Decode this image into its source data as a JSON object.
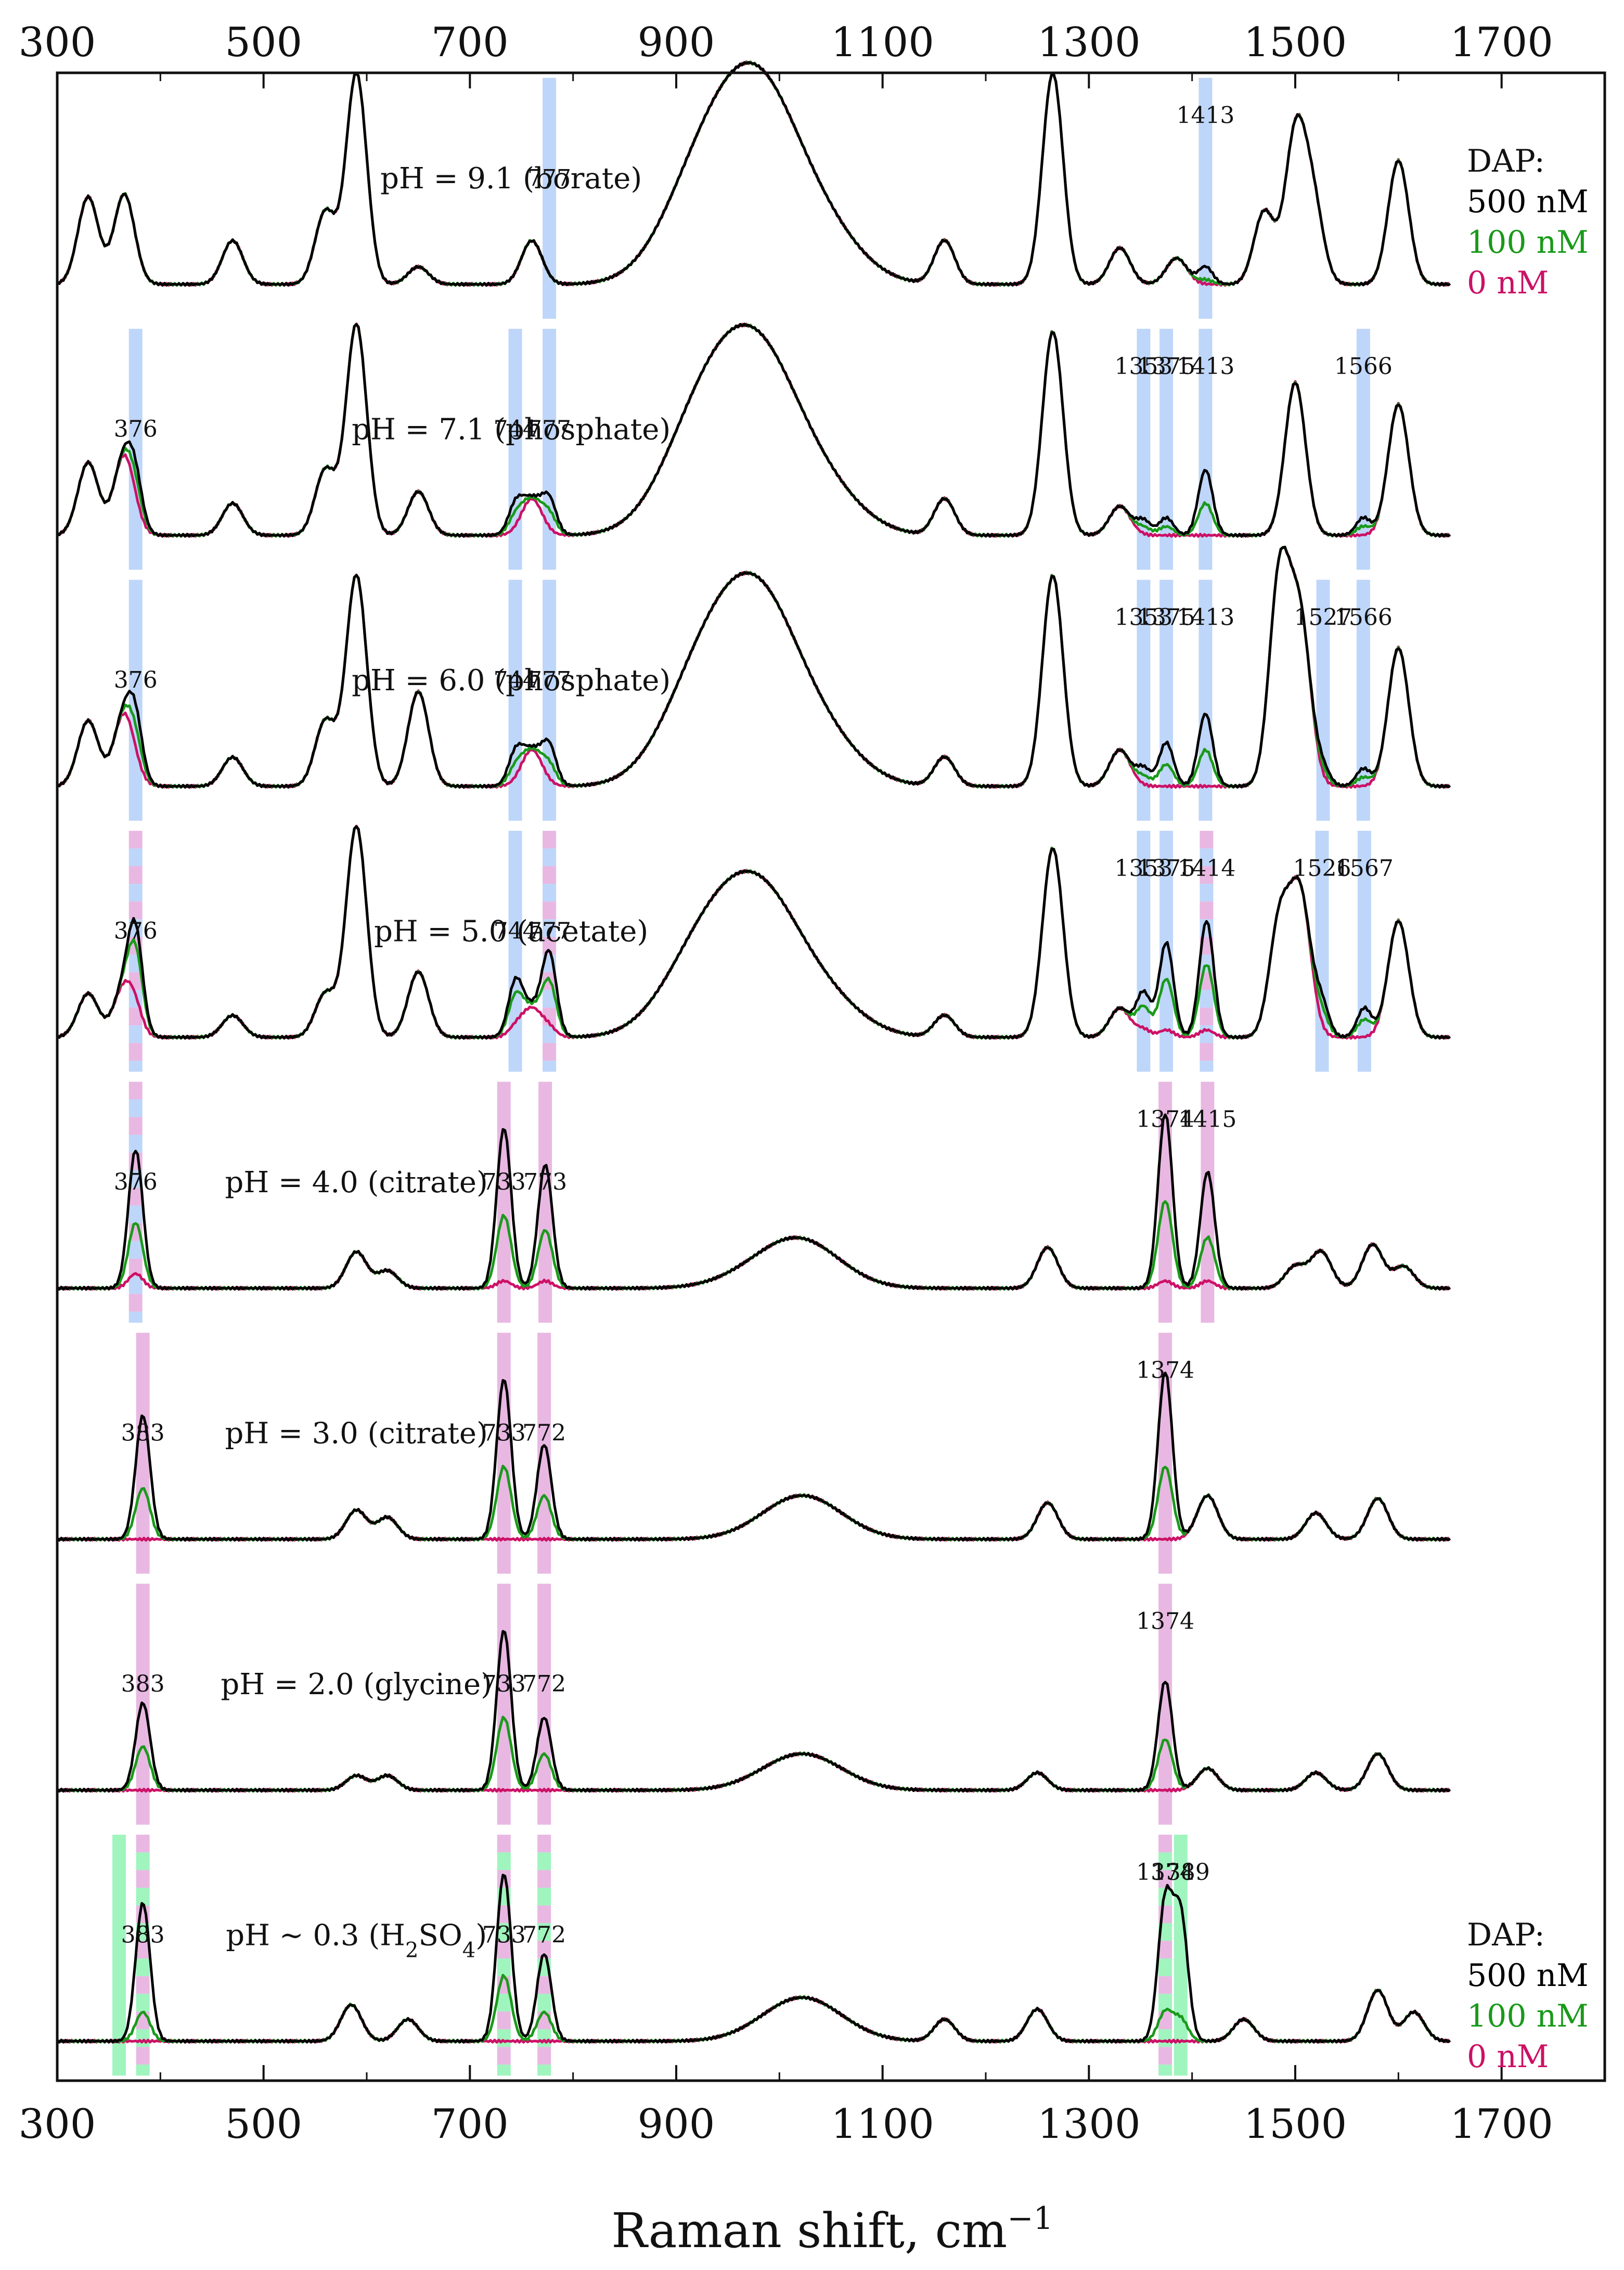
{
  "chart_data": {
    "type": "line",
    "xlabel": "Raman shift, cm",
    "xlabel_sup": "−1",
    "xlim": [
      300,
      1800
    ],
    "xticks": [
      300,
      500,
      700,
      900,
      1100,
      1300,
      1500,
      1700
    ],
    "xtick_labels": [
      "300",
      "500",
      "700",
      "900",
      "1100",
      "1300",
      "1500",
      "1700"
    ],
    "legend": {
      "title": "DAP:",
      "entries": [
        {
          "label": "500 nM",
          "color": "#000000"
        },
        {
          "label": "100 nM",
          "color": "#1a9a1a"
        },
        {
          "label": "0 nM",
          "color": "#cc1166"
        }
      ],
      "placement": "top-right and bottom-right"
    },
    "colors": {
      "black": "#000000",
      "green": "#1a9a1a",
      "magenta": "#cc1166",
      "blue_band": "#a8c8f8",
      "pink_band": "#e0a0d8",
      "mint_band": "#80f0a8"
    },
    "panels": [
      {
        "label": "pH = 9.1 (borate)",
        "base": [
          [
            330,
            0.6
          ],
          [
            365,
            0.62
          ],
          [
            470,
            0.3
          ],
          [
            560,
            0.5
          ],
          [
            590,
            1.45
          ],
          [
            650,
            0.12
          ],
          [
            760,
            0.3
          ],
          [
            925,
            0.7
          ],
          [
            980,
            1.15
          ],
          [
            1040,
            0.35
          ],
          [
            1160,
            0.3
          ],
          [
            1265,
            1.45
          ],
          [
            1330,
            0.25
          ],
          [
            1385,
            0.18
          ],
          [
            1470,
            0.5
          ],
          [
            1500,
            1.0
          ],
          [
            1517,
            0.55
          ],
          [
            1600,
            0.85
          ]
        ],
        "peaks": [
          {
            "x": 1413,
            "label": "1413",
            "amp": [
              0.12,
              0.03,
              0.0
            ]
          },
          {
            "x": 777,
            "label": "777",
            "amp": [
              0.0,
              0.0,
              0.0
            ]
          }
        ],
        "bands": [
          {
            "x": 777,
            "kind": "blue"
          },
          {
            "x": 1413,
            "kind": "blue"
          }
        ]
      },
      {
        "label": "pH = 7.1 (phosphate)",
        "base": [
          [
            330,
            0.5
          ],
          [
            365,
            0.55
          ],
          [
            470,
            0.22
          ],
          [
            560,
            0.45
          ],
          [
            590,
            1.45
          ],
          [
            650,
            0.3
          ],
          [
            760,
            0.25
          ],
          [
            925,
            0.75
          ],
          [
            980,
            1.05
          ],
          [
            1040,
            0.3
          ],
          [
            1160,
            0.25
          ],
          [
            1265,
            1.4
          ],
          [
            1330,
            0.2
          ],
          [
            1500,
            1.05
          ],
          [
            1600,
            0.9
          ]
        ],
        "peaks": [
          {
            "x": 376,
            "label": "376",
            "amp": [
              0.22,
              0.12,
              0.0
            ]
          },
          {
            "x": 744,
            "label": "744",
            "amp": [
              0.18,
              0.1,
              0.0
            ]
          },
          {
            "x": 777,
            "label": "777",
            "amp": [
              0.22,
              0.12,
              0.0
            ]
          },
          {
            "x": 1353,
            "label": "1353",
            "amp": [
              0.1,
              0.05,
              0.0
            ]
          },
          {
            "x": 1375,
            "label": "1375",
            "amp": [
              0.12,
              0.06,
              0.0
            ]
          },
          {
            "x": 1413,
            "label": "1413",
            "amp": [
              0.45,
              0.22,
              0.0
            ]
          },
          {
            "x": 1566,
            "label": "1566",
            "amp": [
              0.12,
              0.06,
              0.0
            ]
          }
        ],
        "bands": [
          {
            "x": 376,
            "kind": "blue"
          },
          {
            "x": 744,
            "kind": "blue"
          },
          {
            "x": 777,
            "kind": "blue"
          },
          {
            "x": 1353,
            "kind": "blue"
          },
          {
            "x": 1375,
            "kind": "blue"
          },
          {
            "x": 1413,
            "kind": "blue"
          },
          {
            "x": 1566,
            "kind": "blue"
          }
        ]
      },
      {
        "label": "pH = 6.0 (phosphate)",
        "base": [
          [
            330,
            0.45
          ],
          [
            365,
            0.5
          ],
          [
            470,
            0.2
          ],
          [
            560,
            0.45
          ],
          [
            590,
            1.45
          ],
          [
            650,
            0.65
          ],
          [
            760,
            0.25
          ],
          [
            925,
            0.7
          ],
          [
            980,
            1.1
          ],
          [
            1040,
            0.3
          ],
          [
            1160,
            0.2
          ],
          [
            1265,
            1.45
          ],
          [
            1330,
            0.25
          ],
          [
            1485,
            1.45
          ],
          [
            1505,
            1.1
          ],
          [
            1600,
            0.95
          ]
        ],
        "peaks": [
          {
            "x": 376,
            "label": "376",
            "amp": [
              0.3,
              0.15,
              0.0
            ]
          },
          {
            "x": 744,
            "label": "744",
            "amp": [
              0.2,
              0.1,
              0.0
            ]
          },
          {
            "x": 777,
            "label": "777",
            "amp": [
              0.25,
              0.12,
              0.0
            ]
          },
          {
            "x": 1353,
            "label": "1353",
            "amp": [
              0.12,
              0.06,
              0.0
            ]
          },
          {
            "x": 1375,
            "label": "1375",
            "amp": [
              0.3,
              0.15,
              0.0
            ]
          },
          {
            "x": 1413,
            "label": "1413",
            "amp": [
              0.5,
              0.25,
              0.0
            ]
          },
          {
            "x": 1527,
            "label": "1527",
            "amp": [
              0.1,
              0.05,
              0.0
            ]
          },
          {
            "x": 1566,
            "label": "1566",
            "amp": [
              0.12,
              0.06,
              0.0
            ]
          }
        ],
        "bands": [
          {
            "x": 376,
            "kind": "blue"
          },
          {
            "x": 744,
            "kind": "blue"
          },
          {
            "x": 777,
            "kind": "blue"
          },
          {
            "x": 1353,
            "kind": "blue"
          },
          {
            "x": 1375,
            "kind": "blue"
          },
          {
            "x": 1413,
            "kind": "blue"
          },
          {
            "x": 1527,
            "kind": "blue"
          },
          {
            "x": 1566,
            "kind": "blue"
          }
        ]
      },
      {
        "label": "pH = 5.0 (acetate)",
        "base": [
          [
            330,
            0.3
          ],
          [
            365,
            0.35
          ],
          [
            470,
            0.15
          ],
          [
            560,
            0.3
          ],
          [
            590,
            1.45
          ],
          [
            650,
            0.45
          ],
          [
            760,
            0.2
          ],
          [
            925,
            0.55
          ],
          [
            980,
            0.85
          ],
          [
            1040,
            0.25
          ],
          [
            1160,
            0.15
          ],
          [
            1265,
            1.3
          ],
          [
            1330,
            0.2
          ],
          [
            1485,
            0.8
          ],
          [
            1505,
            0.95
          ],
          [
            1600,
            0.8
          ]
        ],
        "peaks": [
          {
            "x": 376,
            "label": "376",
            "amp": [
              0.6,
              0.45,
              0.1
            ]
          },
          {
            "x": 744,
            "label": "744",
            "amp": [
              0.35,
              0.25,
              0.05
            ]
          },
          {
            "x": 777,
            "label": "777",
            "amp": [
              0.55,
              0.35,
              0.05
            ]
          },
          {
            "x": 1353,
            "label": "1353",
            "amp": [
              0.3,
              0.2,
              0.05
            ]
          },
          {
            "x": 1375,
            "label": "1375",
            "amp": [
              0.65,
              0.4,
              0.05
            ]
          },
          {
            "x": 1414,
            "label": "1414",
            "amp": [
              0.8,
              0.5,
              0.05
            ]
          },
          {
            "x": 1526,
            "label": "1526",
            "amp": [
              0.2,
              0.12,
              0.0
            ]
          },
          {
            "x": 1567,
            "label": "1567",
            "amp": [
              0.2,
              0.12,
              0.0
            ]
          }
        ],
        "bands": [
          {
            "x": 376,
            "kind": "pink-blue"
          },
          {
            "x": 744,
            "kind": "blue"
          },
          {
            "x": 777,
            "kind": "pink-blue"
          },
          {
            "x": 1353,
            "kind": "blue"
          },
          {
            "x": 1375,
            "kind": "blue"
          },
          {
            "x": 1414,
            "kind": "pink-blue"
          },
          {
            "x": 1526,
            "kind": "blue"
          },
          {
            "x": 1567,
            "kind": "blue"
          }
        ]
      },
      {
        "label": "pH = 4.0 (citrate)",
        "base": [
          [
            590,
            0.25
          ],
          [
            620,
            0.12
          ],
          [
            980,
            0.08
          ],
          [
            1022,
            0.3
          ],
          [
            1260,
            0.28
          ],
          [
            1500,
            0.15
          ],
          [
            1525,
            0.25
          ],
          [
            1575,
            0.3
          ],
          [
            1605,
            0.15
          ]
        ],
        "peaks": [
          {
            "x": 376,
            "label": "376",
            "amp": [
              0.95,
              0.45,
              0.1
            ]
          },
          {
            "x": 733,
            "label": "733",
            "amp": [
              1.1,
              0.5,
              0.05
            ]
          },
          {
            "x": 773,
            "label": "773",
            "amp": [
              0.85,
              0.4,
              0.05
            ]
          },
          {
            "x": 1374,
            "label": "1374",
            "amp": [
              1.2,
              0.6,
              0.05
            ]
          },
          {
            "x": 1415,
            "label": "1415",
            "amp": [
              0.8,
              0.35,
              0.05
            ]
          }
        ],
        "bands": [
          {
            "x": 376,
            "kind": "pink-blue"
          },
          {
            "x": 733,
            "kind": "pink"
          },
          {
            "x": 773,
            "kind": "pink"
          },
          {
            "x": 1374,
            "kind": "pink"
          },
          {
            "x": 1415,
            "kind": "pink"
          }
        ]
      },
      {
        "label": "pH = 3.0 (citrate)",
        "base": [
          [
            590,
            0.2
          ],
          [
            620,
            0.15
          ],
          [
            1022,
            0.3
          ],
          [
            1260,
            0.25
          ],
          [
            1415,
            0.3
          ],
          [
            1520,
            0.18
          ],
          [
            1580,
            0.28
          ]
        ],
        "peaks": [
          {
            "x": 383,
            "label": "383",
            "amp": [
              0.85,
              0.35,
              0.0
            ]
          },
          {
            "x": 733,
            "label": "733",
            "amp": [
              1.1,
              0.5,
              0.0
            ]
          },
          {
            "x": 772,
            "label": "772",
            "amp": [
              0.65,
              0.3,
              0.0
            ]
          },
          {
            "x": 1374,
            "label": "1374",
            "amp": [
              1.15,
              0.5,
              0.0
            ]
          }
        ],
        "bands": [
          {
            "x": 383,
            "kind": "pink"
          },
          {
            "x": 733,
            "kind": "pink"
          },
          {
            "x": 772,
            "kind": "pink"
          },
          {
            "x": 1374,
            "kind": "pink"
          }
        ]
      },
      {
        "label": "pH = 2.0 (glycine)",
        "base": [
          [
            590,
            0.1
          ],
          [
            620,
            0.1
          ],
          [
            1022,
            0.25
          ],
          [
            1250,
            0.12
          ],
          [
            1415,
            0.15
          ],
          [
            1520,
            0.12
          ],
          [
            1580,
            0.25
          ]
        ],
        "peaks": [
          {
            "x": 383,
            "label": "383",
            "amp": [
              0.6,
              0.3,
              0.0
            ]
          },
          {
            "x": 733,
            "label": "733",
            "amp": [
              1.1,
              0.5,
              0.0
            ]
          },
          {
            "x": 772,
            "label": "772",
            "amp": [
              0.5,
              0.25,
              0.0
            ]
          },
          {
            "x": 1374,
            "label": "1374",
            "amp": [
              0.75,
              0.35,
              0.0
            ]
          }
        ],
        "bands": [
          {
            "x": 383,
            "kind": "pink"
          },
          {
            "x": 733,
            "kind": "pink"
          },
          {
            "x": 772,
            "kind": "pink"
          },
          {
            "x": 1374,
            "kind": "pink"
          }
        ]
      },
      {
        "label": "pH ~ 0.3 (H",
        "label_sub": "2",
        "label_tail": "SO",
        "label_sub2": "4",
        "label_end": ")",
        "base": [
          [
            585,
            0.25
          ],
          [
            640,
            0.15
          ],
          [
            1022,
            0.3
          ],
          [
            1160,
            0.15
          ],
          [
            1250,
            0.22
          ],
          [
            1450,
            0.15
          ],
          [
            1580,
            0.35
          ],
          [
            1615,
            0.2
          ]
        ],
        "peaks": [
          {
            "x": 383,
            "label": "383",
            "amp": [
              0.95,
              0.2,
              0.0
            ]
          },
          {
            "x": 733,
            "label": "733",
            "amp": [
              1.15,
              0.45,
              0.0
            ]
          },
          {
            "x": 772,
            "label": "772",
            "amp": [
              0.6,
              0.2,
              0.0
            ]
          },
          {
            "x": 1374,
            "label": "1374",
            "amp": [
              0.95,
              0.2,
              0.0
            ]
          },
          {
            "x": 1389,
            "label": "1389",
            "amp": [
              0.85,
              0.15,
              0.0
            ]
          }
        ],
        "bands": [
          {
            "x": 360,
            "kind": "mint"
          },
          {
            "x": 383,
            "kind": "pink-mint"
          },
          {
            "x": 733,
            "kind": "pink-mint"
          },
          {
            "x": 772,
            "kind": "pink-mint"
          },
          {
            "x": 1374,
            "kind": "pink-mint"
          },
          {
            "x": 1389,
            "kind": "mint"
          }
        ]
      }
    ]
  }
}
